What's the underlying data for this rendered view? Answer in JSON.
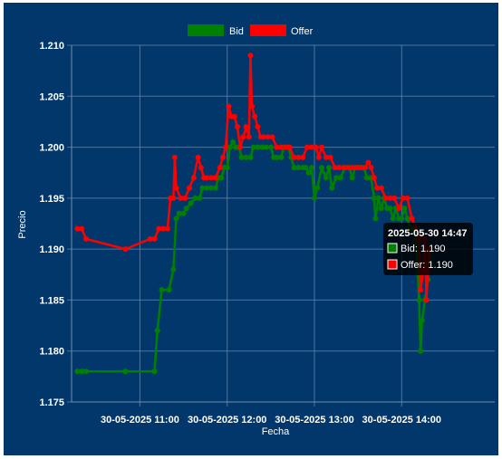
{
  "chart_data": {
    "type": "line",
    "xlabel": "Fecha",
    "ylabel": "Precio",
    "ylim": [
      1.175,
      1.21
    ],
    "y_ticks": [
      "1.175",
      "1.180",
      "1.185",
      "1.190",
      "1.195",
      "1.200",
      "1.205",
      "1.210"
    ],
    "x_range_minutes": [
      613,
      904
    ],
    "x_ticks": [
      {
        "label": "30-05-2025 11:00",
        "minute": 660
      },
      {
        "label": "30-05-2025 12:00",
        "minute": 720
      },
      {
        "label": "30-05-2025 13:00",
        "minute": 780
      },
      {
        "label": "30-05-2025 14:00",
        "minute": 840
      }
    ],
    "grid": true,
    "legend_position": "top-center",
    "series": [
      {
        "name": "Bid",
        "color": "#008000",
        "points": [
          [
            617,
            1.178
          ],
          [
            620,
            1.178
          ],
          [
            623,
            1.178
          ],
          [
            650,
            1.178
          ],
          [
            670,
            1.178
          ],
          [
            672,
            1.182
          ],
          [
            675,
            1.186
          ],
          [
            680,
            1.186
          ],
          [
            683,
            1.188
          ],
          [
            685,
            1.193
          ],
          [
            687,
            1.1935
          ],
          [
            690,
            1.1935
          ],
          [
            692,
            1.194
          ],
          [
            695,
            1.1945
          ],
          [
            698,
            1.195
          ],
          [
            701,
            1.195
          ],
          [
            703,
            1.196
          ],
          [
            706,
            1.196
          ],
          [
            709,
            1.196
          ],
          [
            712,
            1.196
          ],
          [
            714,
            1.197
          ],
          [
            716,
            1.197
          ],
          [
            718,
            1.198
          ],
          [
            720,
            1.198
          ],
          [
            722,
            1.2
          ],
          [
            724,
            1.2005
          ],
          [
            726,
            1.2
          ],
          [
            728,
            1.2
          ],
          [
            730,
            1.199
          ],
          [
            733,
            1.199
          ],
          [
            736,
            1.199
          ],
          [
            738,
            1.2
          ],
          [
            741,
            1.2
          ],
          [
            744,
            1.2
          ],
          [
            747,
            1.2
          ],
          [
            750,
            1.2
          ],
          [
            752,
            1.199
          ],
          [
            754,
            1.199
          ],
          [
            757,
            1.199
          ],
          [
            759,
            1.2
          ],
          [
            762,
            1.2
          ],
          [
            764,
            1.199
          ],
          [
            766,
            1.198
          ],
          [
            769,
            1.198
          ],
          [
            772,
            1.198
          ],
          [
            774,
            1.198
          ],
          [
            776,
            1.1975
          ],
          [
            778,
            1.198
          ],
          [
            780,
            1.195
          ],
          [
            782,
            1.196
          ],
          [
            785,
            1.198
          ],
          [
            788,
            1.197
          ],
          [
            790,
            1.198
          ],
          [
            792,
            1.196
          ],
          [
            795,
            1.197
          ],
          [
            798,
            1.197
          ],
          [
            801,
            1.198
          ],
          [
            804,
            1.198
          ],
          [
            806,
            1.197
          ],
          [
            808,
            1.198
          ],
          [
            811,
            1.198
          ],
          [
            814,
            1.198
          ],
          [
            816,
            1.197
          ],
          [
            819,
            1.197
          ],
          [
            821,
            1.195
          ],
          [
            822,
            1.193
          ],
          [
            824,
            1.195
          ],
          [
            826,
            1.194
          ],
          [
            828,
            1.195
          ],
          [
            830,
            1.194
          ],
          [
            832,
            1.194
          ],
          [
            834,
            1.193
          ],
          [
            836,
            1.194
          ],
          [
            838,
            1.193
          ],
          [
            840,
            1.193
          ],
          [
            842,
            1.194
          ],
          [
            844,
            1.193
          ],
          [
            846,
            1.192
          ],
          [
            848,
            1.192
          ],
          [
            850,
            1.191
          ],
          [
            852,
            1.185
          ],
          [
            853,
            1.18
          ],
          [
            854,
            1.183
          ],
          [
            856,
            1.185
          ],
          [
            858,
            1.187
          ],
          [
            860,
            1.19
          ]
        ]
      },
      {
        "name": "Offer",
        "color": "#ff0000",
        "points": [
          [
            617,
            1.192
          ],
          [
            620,
            1.192
          ],
          [
            623,
            1.191
          ],
          [
            650,
            1.19
          ],
          [
            667,
            1.191
          ],
          [
            670,
            1.191
          ],
          [
            673,
            1.192
          ],
          [
            676,
            1.192
          ],
          [
            679,
            1.192
          ],
          [
            681,
            1.195
          ],
          [
            683,
            1.195
          ],
          [
            684,
            1.199
          ],
          [
            685,
            1.196
          ],
          [
            688,
            1.195
          ],
          [
            691,
            1.195
          ],
          [
            694,
            1.196
          ],
          [
            697,
            1.197
          ],
          [
            700,
            1.199
          ],
          [
            702,
            1.198
          ],
          [
            704,
            1.197
          ],
          [
            706,
            1.197
          ],
          [
            709,
            1.197
          ],
          [
            712,
            1.197
          ],
          [
            715,
            1.198
          ],
          [
            717,
            1.199
          ],
          [
            719,
            1.2
          ],
          [
            721,
            1.204
          ],
          [
            723,
            1.203
          ],
          [
            725,
            1.203
          ],
          [
            727,
            1.202
          ],
          [
            729,
            1.2
          ],
          [
            731,
            1.201
          ],
          [
            733,
            1.202
          ],
          [
            735,
            1.201
          ],
          [
            736,
            1.209
          ],
          [
            737,
            1.204
          ],
          [
            739,
            1.203
          ],
          [
            741,
            1.202
          ],
          [
            743,
            1.201
          ],
          [
            745,
            1.201
          ],
          [
            748,
            1.201
          ],
          [
            751,
            1.201
          ],
          [
            754,
            1.2
          ],
          [
            757,
            1.2
          ],
          [
            760,
            1.2
          ],
          [
            763,
            1.2
          ],
          [
            766,
            1.199
          ],
          [
            769,
            1.199
          ],
          [
            772,
            1.199
          ],
          [
            775,
            1.2
          ],
          [
            778,
            1.2
          ],
          [
            781,
            1.2
          ],
          [
            783,
            1.199
          ],
          [
            785,
            1.2
          ],
          [
            788,
            1.199
          ],
          [
            791,
            1.199
          ],
          [
            794,
            1.198
          ],
          [
            797,
            1.198
          ],
          [
            800,
            1.198
          ],
          [
            803,
            1.198
          ],
          [
            806,
            1.198
          ],
          [
            809,
            1.198
          ],
          [
            812,
            1.198
          ],
          [
            815,
            1.198
          ],
          [
            817,
            1.1985
          ],
          [
            819,
            1.198
          ],
          [
            821,
            1.197
          ],
          [
            823,
            1.196
          ],
          [
            826,
            1.196
          ],
          [
            829,
            1.195
          ],
          [
            832,
            1.195
          ],
          [
            835,
            1.195
          ],
          [
            838,
            1.194
          ],
          [
            841,
            1.195
          ],
          [
            844,
            1.195
          ],
          [
            847,
            1.193
          ],
          [
            850,
            1.192
          ],
          [
            852,
            1.191
          ],
          [
            853,
            1.186
          ],
          [
            855,
            1.188
          ],
          [
            856,
            1.191
          ],
          [
            857,
            1.185
          ],
          [
            858,
            1.188
          ],
          [
            859,
            1.19
          ],
          [
            860,
            1.19
          ]
        ]
      }
    ],
    "tooltip": {
      "title": "2025-05-30 14:47",
      "lines": [
        "Bid: 1.190",
        "Offer: 1.190"
      ]
    }
  }
}
